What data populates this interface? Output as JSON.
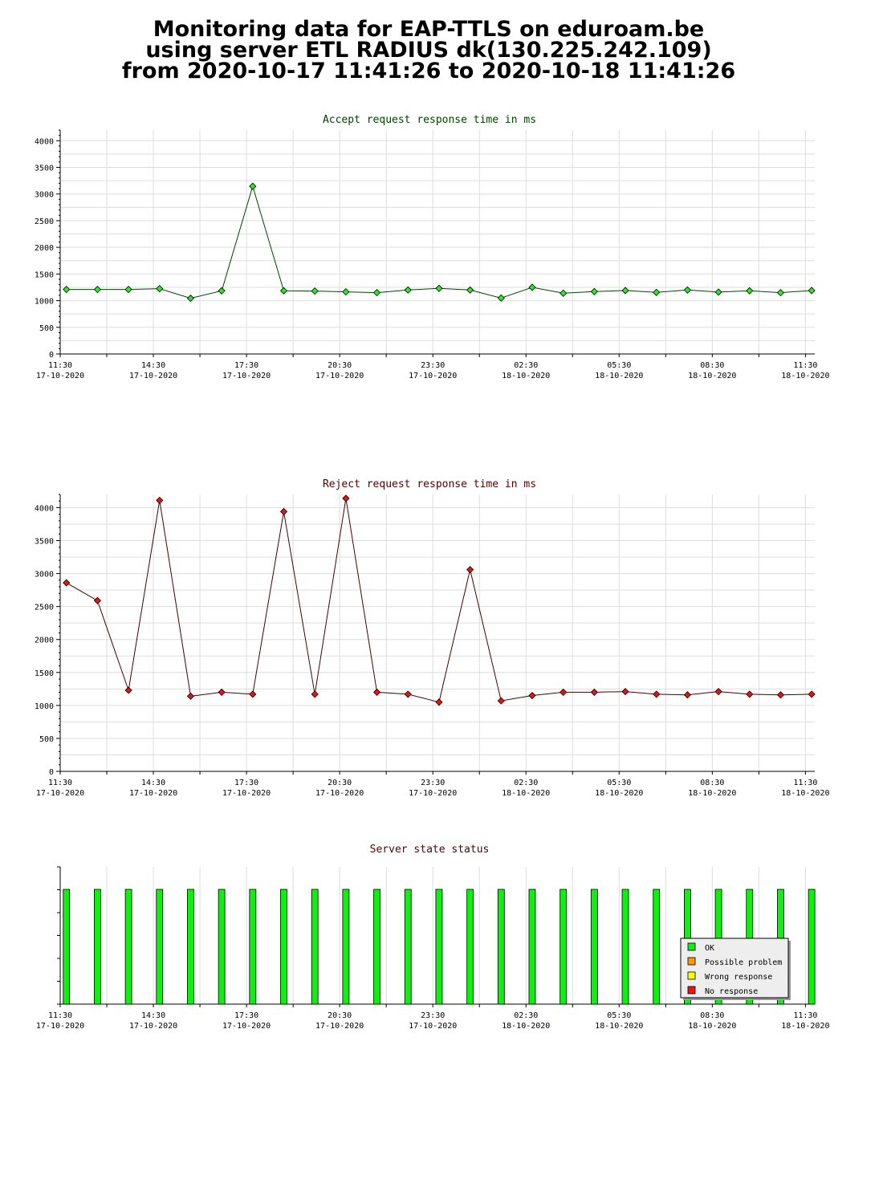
{
  "header": {
    "line1": "Monitoring data for EAP-TTLS on eduroam.be",
    "line2": "using server ETL RADIUS dk(130.225.242.109)",
    "line3": "from 2020-10-17 11:41:26 to 2020-10-18 11:41:26"
  },
  "colors": {
    "accept_line": "#004400",
    "accept_marker": "#22ee22",
    "reject_line": "#440000",
    "reject_marker": "#ee1111",
    "ok": "#11ee11",
    "possible_problem": "#ff9900",
    "wrong_response": "#ffff00",
    "no_response": "#ee1111"
  },
  "chart_data": [
    {
      "type": "line",
      "title": "Accept request response time in ms",
      "x_unit": "hours since 2020-10-17 11:30",
      "xlim": [
        0,
        24.3
      ],
      "ylim": [
        0,
        4200
      ],
      "yticks": [
        0,
        500,
        1000,
        1500,
        2000,
        2500,
        3000,
        3500,
        4000
      ],
      "xticks": [
        {
          "time": "11:30",
          "date": "17-10-2020",
          "x": 0
        },
        {
          "time": "14:30",
          "date": "17-10-2020",
          "x": 3
        },
        {
          "time": "17:30",
          "date": "17-10-2020",
          "x": 6
        },
        {
          "time": "20:30",
          "date": "17-10-2020",
          "x": 9
        },
        {
          "time": "23:30",
          "date": "17-10-2020",
          "x": 12
        },
        {
          "time": "02:30",
          "date": "18-10-2020",
          "x": 15
        },
        {
          "time": "05:30",
          "date": "18-10-2020",
          "x": 18
        },
        {
          "time": "08:30",
          "date": "18-10-2020",
          "x": 21
        },
        {
          "time": "11:30",
          "date": "18-10-2020",
          "x": 24
        }
      ],
      "grid": true,
      "series": [
        {
          "x": [
            0.2,
            1.2,
            2.2,
            3.2,
            4.2,
            5.2,
            6.2,
            7.2,
            8.2,
            9.2,
            10.2,
            11.2,
            12.2,
            13.2,
            14.2,
            15.2,
            16.2,
            17.2,
            18.2,
            19.2,
            20.2,
            21.2,
            22.2,
            23.2,
            24.2
          ],
          "values": [
            1210,
            1210,
            1210,
            1225,
            1045,
            1185,
            3145,
            1185,
            1180,
            1165,
            1150,
            1200,
            1230,
            1200,
            1050,
            1250,
            1140,
            1170,
            1190,
            1155,
            1200,
            1160,
            1185,
            1150,
            1190
          ]
        }
      ]
    },
    {
      "type": "line",
      "title": "Reject request response time in ms",
      "x_unit": "hours since 2020-10-17 11:30",
      "xlim": [
        0,
        24.3
      ],
      "ylim": [
        0,
        4200
      ],
      "yticks": [
        0,
        500,
        1000,
        1500,
        2000,
        2500,
        3000,
        3500,
        4000
      ],
      "xticks": [
        {
          "time": "11:30",
          "date": "17-10-2020",
          "x": 0
        },
        {
          "time": "14:30",
          "date": "17-10-2020",
          "x": 3
        },
        {
          "time": "17:30",
          "date": "17-10-2020",
          "x": 6
        },
        {
          "time": "20:30",
          "date": "17-10-2020",
          "x": 9
        },
        {
          "time": "23:30",
          "date": "17-10-2020",
          "x": 12
        },
        {
          "time": "02:30",
          "date": "18-10-2020",
          "x": 15
        },
        {
          "time": "05:30",
          "date": "18-10-2020",
          "x": 18
        },
        {
          "time": "08:30",
          "date": "18-10-2020",
          "x": 21
        },
        {
          "time": "11:30",
          "date": "18-10-2020",
          "x": 24
        }
      ],
      "grid": true,
      "series": [
        {
          "x": [
            0.2,
            1.2,
            2.2,
            3.2,
            4.2,
            5.2,
            6.2,
            7.2,
            8.2,
            9.2,
            10.2,
            11.2,
            12.2,
            13.2,
            14.2,
            15.2,
            16.2,
            17.2,
            18.2,
            19.2,
            20.2,
            21.2,
            22.2,
            23.2,
            24.2
          ],
          "values": [
            2860,
            2590,
            1230,
            4110,
            1140,
            1200,
            1170,
            3940,
            1170,
            4140,
            1200,
            1170,
            1050,
            3060,
            1070,
            1150,
            1200,
            1200,
            1210,
            1170,
            1160,
            1210,
            1170,
            1160,
            1170
          ]
        }
      ]
    },
    {
      "type": "bar",
      "title": "Server state status",
      "x_unit": "hours since 2020-10-17 11:30",
      "xlim": [
        0,
        24.3
      ],
      "xticks": [
        {
          "time": "11:30",
          "date": "17-10-2020",
          "x": 0
        },
        {
          "time": "14:30",
          "date": "17-10-2020",
          "x": 3
        },
        {
          "time": "17:30",
          "date": "17-10-2020",
          "x": 6
        },
        {
          "time": "20:30",
          "date": "17-10-2020",
          "x": 9
        },
        {
          "time": "23:30",
          "date": "17-10-2020",
          "x": 12
        },
        {
          "time": "02:30",
          "date": "18-10-2020",
          "x": 15
        },
        {
          "time": "05:30",
          "date": "18-10-2020",
          "x": 18
        },
        {
          "time": "08:30",
          "date": "18-10-2020",
          "x": 21
        },
        {
          "time": "11:30",
          "date": "18-10-2020",
          "x": 24
        }
      ],
      "x": [
        0.2,
        1.2,
        2.2,
        3.2,
        4.2,
        5.2,
        6.2,
        7.2,
        8.2,
        9.2,
        10.2,
        11.2,
        12.2,
        13.2,
        14.2,
        15.2,
        16.2,
        17.2,
        18.2,
        19.2,
        20.2,
        21.2,
        22.2,
        23.2,
        24.2
      ],
      "states": [
        "OK",
        "OK",
        "OK",
        "OK",
        "OK",
        "OK",
        "OK",
        "OK",
        "OK",
        "OK",
        "OK",
        "OK",
        "OK",
        "OK",
        "OK",
        "OK",
        "OK",
        "OK",
        "OK",
        "OK",
        "OK",
        "OK",
        "OK",
        "OK",
        "OK"
      ],
      "legend": [
        "OK",
        "Possible problem",
        "Wrong response",
        "No response"
      ],
      "legend_position": "bottom-right"
    }
  ]
}
